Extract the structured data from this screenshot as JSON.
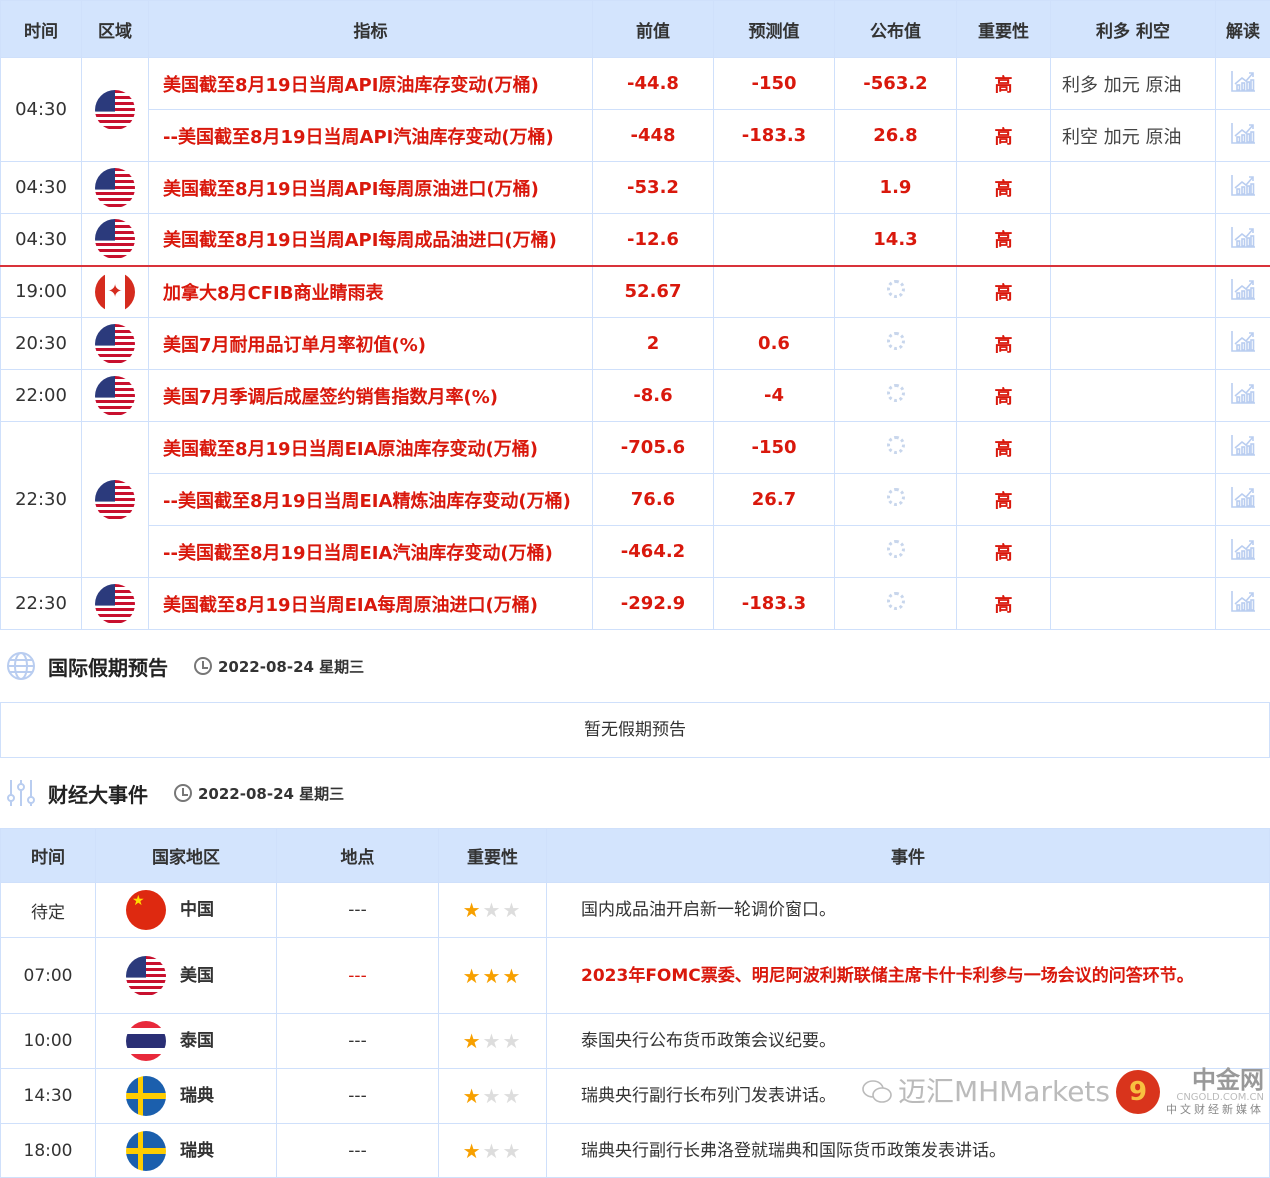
{
  "calendar": {
    "headers": [
      "时间",
      "区域",
      "指标",
      "前值",
      "预测值",
      "公布值",
      "重要性",
      "利多 利空",
      "解读"
    ],
    "groups": [
      {
        "time": "04:30",
        "flag": "us",
        "rows": [
          {
            "indicator": "美国截至8月19日当周API原油库存变动(万桶)",
            "prev": "-44.8",
            "forecast": "-150",
            "actual": "-563.2",
            "importance": "高",
            "impact": "利多  加元 原油"
          },
          {
            "indicator": "--美国截至8月19日当周API汽油库存变动(万桶)",
            "prev": "-448",
            "forecast": "-183.3",
            "actual": "26.8",
            "importance": "高",
            "impact": "利空  加元 原油"
          }
        ]
      },
      {
        "time": "04:30",
        "flag": "us",
        "rows": [
          {
            "indicator": "美国截至8月19日当周API每周原油进口(万桶)",
            "prev": "-53.2",
            "forecast": "",
            "actual": "1.9",
            "importance": "高",
            "impact": ""
          }
        ]
      },
      {
        "time": "04:30",
        "flag": "us",
        "rows": [
          {
            "indicator": "美国截至8月19日当周API每周成品油进口(万桶)",
            "prev": "-12.6",
            "forecast": "",
            "actual": "14.3",
            "importance": "高",
            "impact": ""
          }
        ]
      },
      {
        "time": "19:00",
        "flag": "ca",
        "sep": true,
        "rows": [
          {
            "indicator": "加拿大8月CFIB商业睛雨表",
            "prev": "52.67",
            "forecast": "",
            "actual": "",
            "importance": "高",
            "impact": ""
          }
        ]
      },
      {
        "time": "20:30",
        "flag": "us",
        "rows": [
          {
            "indicator": "美国7月耐用品订单月率初值(%)",
            "prev": "2",
            "forecast": "0.6",
            "actual": "",
            "importance": "高",
            "impact": ""
          }
        ]
      },
      {
        "time": "22:00",
        "flag": "us",
        "rows": [
          {
            "indicator": "美国7月季调后成屋签约销售指数月率(%)",
            "prev": "-8.6",
            "forecast": "-4",
            "actual": "",
            "importance": "高",
            "impact": ""
          }
        ]
      },
      {
        "time": "22:30",
        "flag": "us",
        "rows": [
          {
            "indicator": "美国截至8月19日当周EIA原油库存变动(万桶)",
            "prev": "-705.6",
            "forecast": "-150",
            "actual": "",
            "importance": "高",
            "impact": ""
          },
          {
            "indicator": "--美国截至8月19日当周EIA精炼油库存变动(万桶)",
            "prev": "76.6",
            "forecast": "26.7",
            "actual": "",
            "importance": "高",
            "impact": ""
          },
          {
            "indicator": "--美国截至8月19日当周EIA汽油库存变动(万桶)",
            "prev": "-464.2",
            "forecast": "",
            "actual": "",
            "importance": "高",
            "impact": ""
          }
        ]
      },
      {
        "time": "22:30",
        "flag": "us",
        "rows": [
          {
            "indicator": "美国截至8月19日当周EIA每周原油进口(万桶)",
            "prev": "-292.9",
            "forecast": "-183.3",
            "actual": "",
            "importance": "高",
            "impact": ""
          }
        ]
      }
    ]
  },
  "holidays": {
    "title": "国际假期预告",
    "date": "2022-08-24 星期三",
    "empty": "暂无假期预告"
  },
  "events": {
    "title": "财经大事件",
    "date": "2022-08-24 星期三",
    "headers": [
      "时间",
      "国家地区",
      "地点",
      "重要性",
      "事件"
    ],
    "rows": [
      {
        "time": "待定",
        "flag": "cn",
        "country": "中国",
        "place": "---",
        "stars": 1,
        "event": "国内成品油开启新一轮调价窗口。",
        "highlight": false
      },
      {
        "time": "07:00",
        "flag": "us",
        "country": "美国",
        "place": "---",
        "stars": 3,
        "event": "2023年FOMC票委、明尼阿波利斯联储主席卡什卡利参与一场会议的问答环节。",
        "highlight": true
      },
      {
        "time": "10:00",
        "flag": "th",
        "country": "泰国",
        "place": "---",
        "stars": 1,
        "event": "泰国央行公布货币政策会议纪要。",
        "highlight": false
      },
      {
        "time": "14:30",
        "flag": "se",
        "country": "瑞典",
        "place": "---",
        "stars": 1,
        "event": "瑞典央行副行长布列门发表讲话。",
        "highlight": false
      },
      {
        "time": "18:00",
        "flag": "se",
        "country": "瑞典",
        "place": "---",
        "stars": 1,
        "event": "瑞典央行副行长弗洛登就瑞典和国际货币政策发表讲话。",
        "highlight": false
      }
    ]
  },
  "watermark": {
    "text": "迈汇MHMarkets",
    "brand": "中金网",
    "site": "CNGOLD.COM.CN",
    "slogan": "中文财经新媒体"
  },
  "colors": {
    "accent_red": "#d9180c",
    "header_bg": "#d3e4fd",
    "border": "#cfe0fb",
    "star": "#f7a000"
  }
}
